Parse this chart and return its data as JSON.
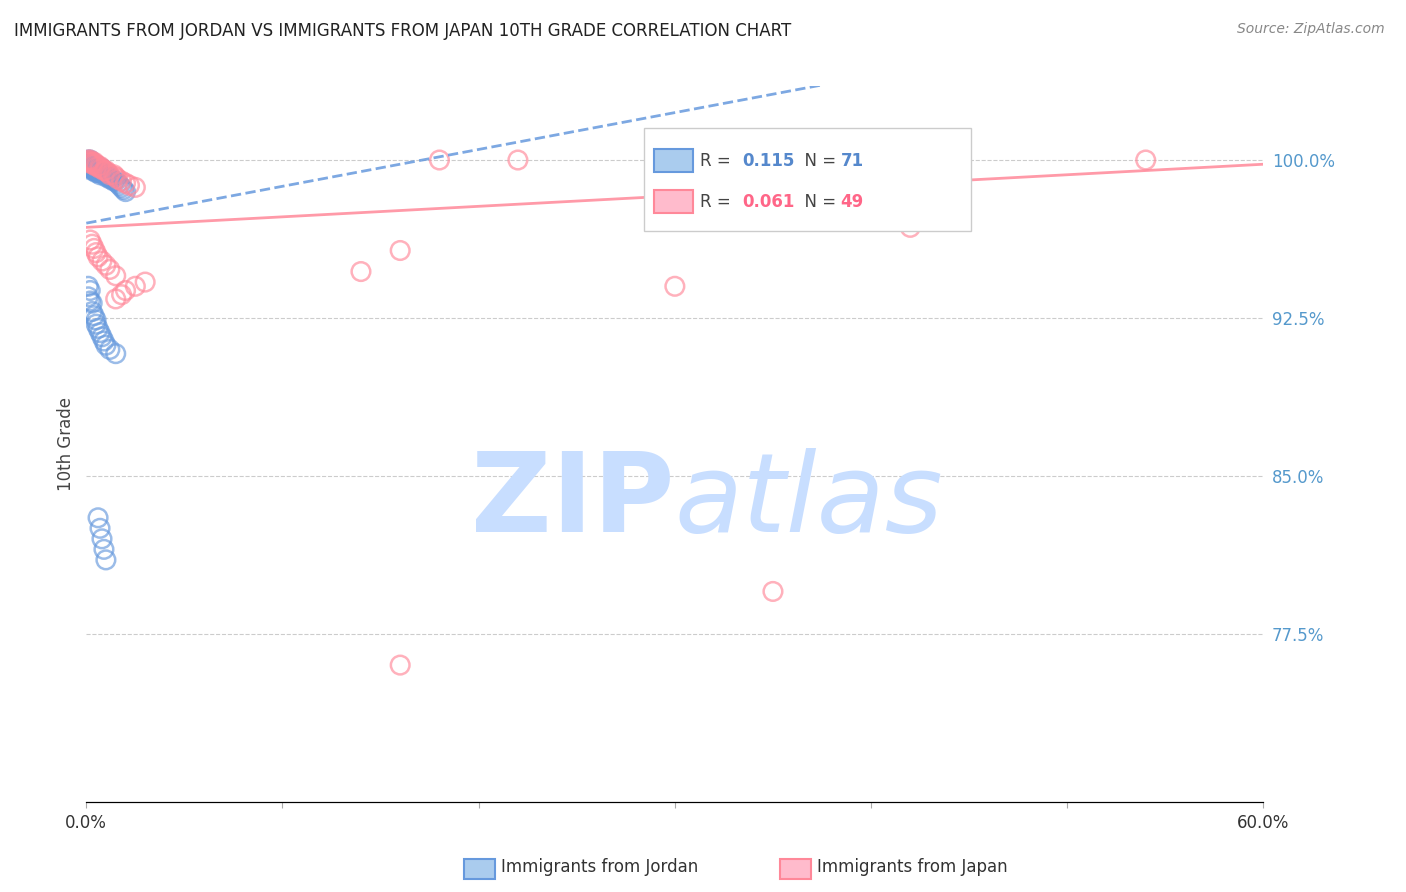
{
  "title": "IMMIGRANTS FROM JORDAN VS IMMIGRANTS FROM JAPAN 10TH GRADE CORRELATION CHART",
  "source": "Source: ZipAtlas.com",
  "ylabel": "10th Grade",
  "yticks": [
    0.775,
    0.85,
    0.925,
    1.0
  ],
  "ytick_labels": [
    "77.5%",
    "85.0%",
    "92.5%",
    "100.0%"
  ],
  "xmin": 0.0,
  "xmax": 0.6,
  "ymin": 0.695,
  "ymax": 1.035,
  "jordan_color": "#6699DD",
  "japan_color": "#FF8899",
  "jordan_R": 0.115,
  "jordan_N": 71,
  "japan_R": 0.061,
  "japan_N": 49,
  "jordan_x": [
    0.001,
    0.001,
    0.001,
    0.001,
    0.002,
    0.002,
    0.002,
    0.002,
    0.002,
    0.003,
    0.003,
    0.003,
    0.003,
    0.003,
    0.004,
    0.004,
    0.004,
    0.004,
    0.005,
    0.005,
    0.005,
    0.005,
    0.006,
    0.006,
    0.006,
    0.006,
    0.007,
    0.007,
    0.007,
    0.007,
    0.008,
    0.008,
    0.008,
    0.009,
    0.009,
    0.01,
    0.01,
    0.01,
    0.011,
    0.011,
    0.012,
    0.012,
    0.013,
    0.014,
    0.015,
    0.016,
    0.017,
    0.018,
    0.019,
    0.02,
    0.001,
    0.001,
    0.002,
    0.002,
    0.003,
    0.003,
    0.004,
    0.005,
    0.005,
    0.006,
    0.007,
    0.008,
    0.009,
    0.01,
    0.012,
    0.015,
    0.006,
    0.007,
    0.008,
    0.009,
    0.01
  ],
  "jordan_y": [
    1.0,
    0.999,
    0.998,
    0.997,
    1.0,
    0.999,
    0.998,
    0.997,
    0.996,
    0.999,
    0.998,
    0.997,
    0.996,
    0.995,
    0.998,
    0.997,
    0.996,
    0.995,
    0.997,
    0.996,
    0.995,
    0.994,
    0.997,
    0.996,
    0.995,
    0.994,
    0.996,
    0.995,
    0.994,
    0.993,
    0.996,
    0.995,
    0.994,
    0.995,
    0.994,
    0.994,
    0.993,
    0.992,
    0.993,
    0.992,
    0.992,
    0.991,
    0.991,
    0.99,
    0.99,
    0.989,
    0.988,
    0.987,
    0.986,
    0.985,
    0.94,
    0.935,
    0.938,
    0.933,
    0.932,
    0.928,
    0.926,
    0.924,
    0.922,
    0.92,
    0.918,
    0.916,
    0.914,
    0.912,
    0.91,
    0.908,
    0.83,
    0.825,
    0.82,
    0.815,
    0.81
  ],
  "japan_x": [
    0.001,
    0.001,
    0.002,
    0.002,
    0.003,
    0.003,
    0.004,
    0.004,
    0.005,
    0.005,
    0.006,
    0.007,
    0.007,
    0.008,
    0.009,
    0.01,
    0.011,
    0.012,
    0.014,
    0.015,
    0.016,
    0.018,
    0.02,
    0.022,
    0.025,
    0.002,
    0.003,
    0.004,
    0.005,
    0.006,
    0.008,
    0.01,
    0.012,
    0.015,
    0.18,
    0.22,
    0.42,
    0.54,
    0.42,
    0.3,
    0.16,
    0.14,
    0.03,
    0.025,
    0.02,
    0.018,
    0.015,
    0.35,
    0.16
  ],
  "japan_y": [
    1.0,
    0.999,
    1.0,
    0.999,
    0.999,
    0.998,
    0.999,
    0.998,
    0.998,
    0.997,
    0.997,
    0.997,
    0.996,
    0.996,
    0.995,
    0.995,
    0.994,
    0.993,
    0.993,
    0.992,
    0.991,
    0.99,
    0.989,
    0.988,
    0.987,
    0.962,
    0.96,
    0.958,
    0.956,
    0.954,
    0.952,
    0.95,
    0.948,
    0.945,
    1.0,
    1.0,
    1.0,
    1.0,
    0.968,
    0.94,
    0.957,
    0.947,
    0.942,
    0.94,
    0.938,
    0.936,
    0.934,
    0.795,
    0.76
  ],
  "watermark_zip_color": "#C8DEFF",
  "watermark_atlas_color": "#C8DEFF",
  "background_color": "#FFFFFF",
  "legend_jordan_text_color": "#5588CC",
  "legend_japan_text_color": "#FF6688",
  "right_axis_color": "#5599CC"
}
